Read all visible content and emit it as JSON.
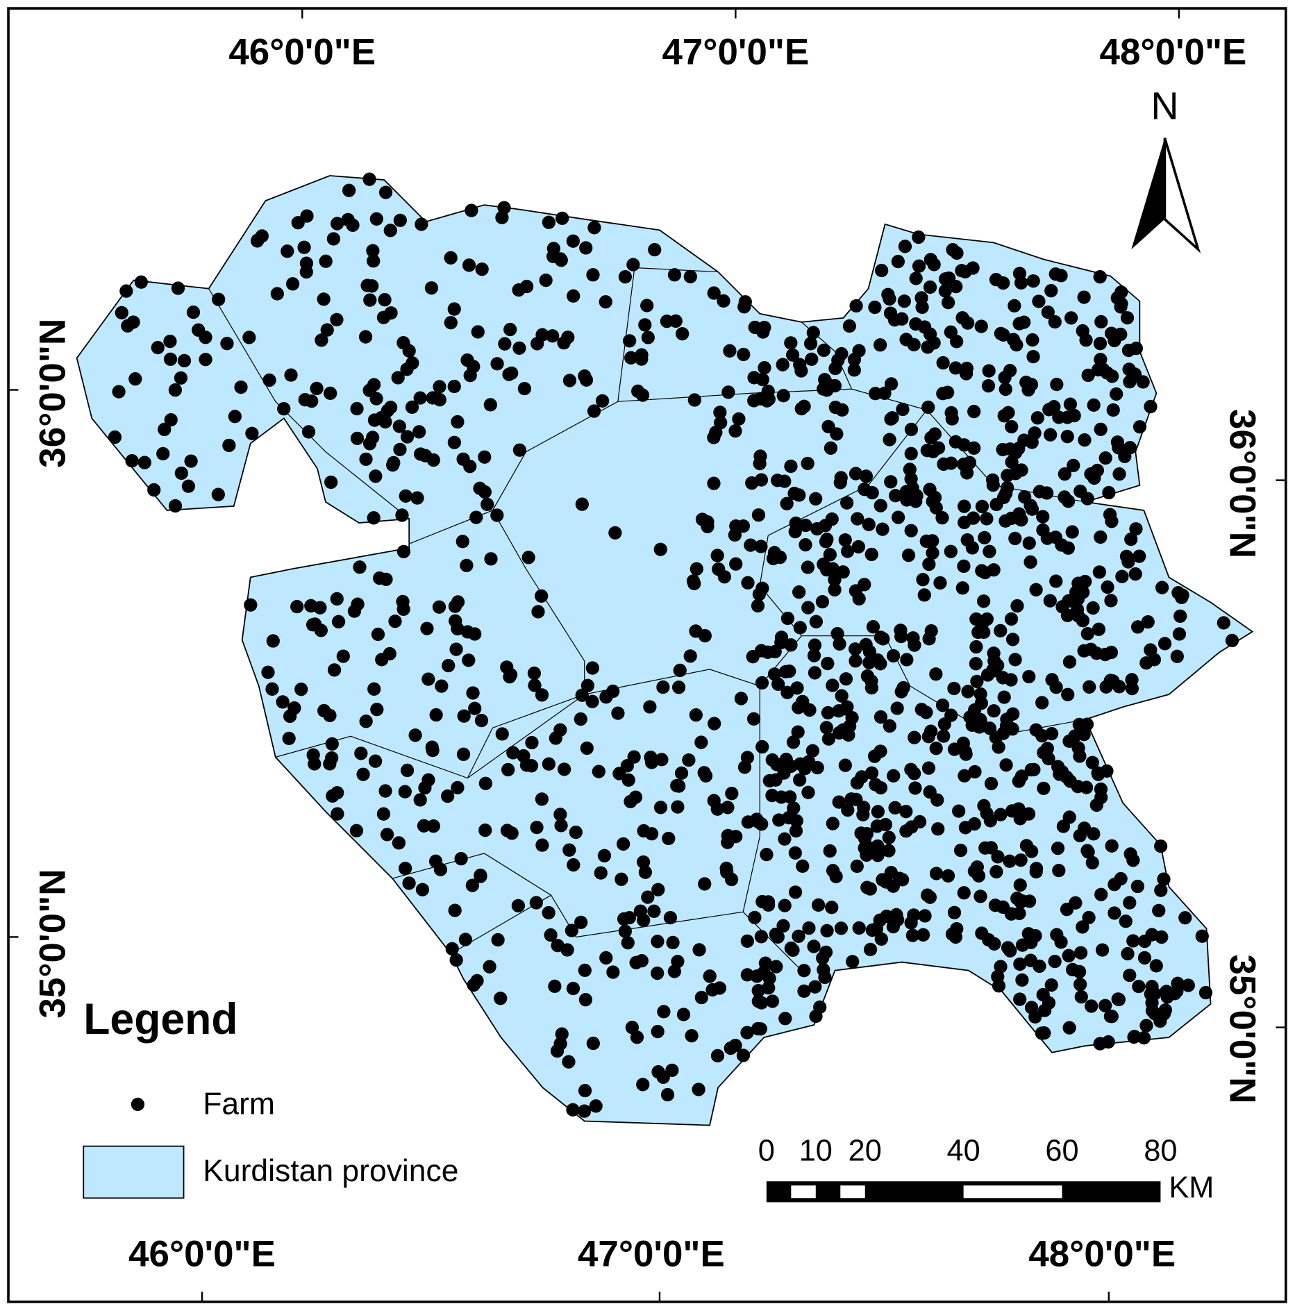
{
  "map": {
    "graticule": {
      "top": [
        "46°0'0\"E",
        "47°0'0\"E",
        "48°0'0\"E"
      ],
      "bottom": [
        "46°0'0\"E",
        "47°0'0\"E",
        "48°0'0\"E"
      ],
      "left": [
        "36°0'0\"N",
        "35°0'0\"N"
      ],
      "right": [
        "36°0'0\"N",
        "35°0'0\"N"
      ]
    },
    "north_arrow": "N",
    "legend": {
      "title": "Legend",
      "items": [
        "Farm",
        "Kurdistan province"
      ]
    },
    "scale_bar": {
      "ticks": [
        0,
        10,
        20,
        40,
        60,
        80
      ],
      "unit": "KM"
    }
  }
}
